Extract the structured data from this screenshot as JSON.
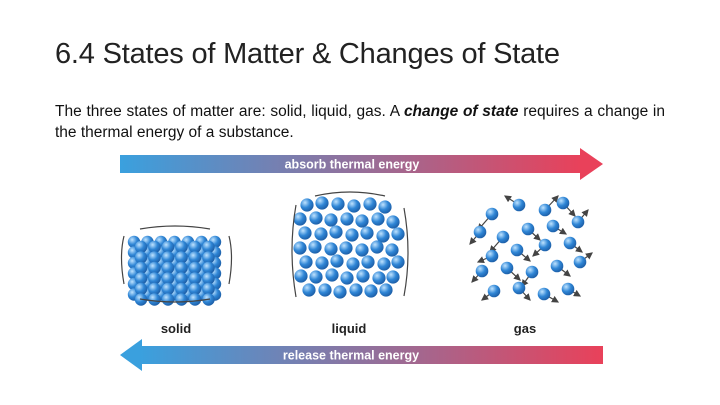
{
  "slide": {
    "title": "6.4 States of Matter & Changes of State",
    "body": {
      "before": "The three states of matter are: solid, liquid, gas. A",
      "emphasis": "change of state",
      "after": "requires a change in the thermal energy of a substance."
    }
  },
  "figure": {
    "top_arrow_label": "absorb thermal energy",
    "bottom_arrow_label": "release thermal energy",
    "states": [
      {
        "label": "solid"
      },
      {
        "label": "liquid"
      },
      {
        "label": "gas"
      }
    ],
    "colors": {
      "arrow_start": "#3aa0de",
      "arrow_end": "#e9415a",
      "particle": "#2f86d6",
      "particle_highlight": "#bfe3ff",
      "motion_lines": "#444444"
    }
  }
}
